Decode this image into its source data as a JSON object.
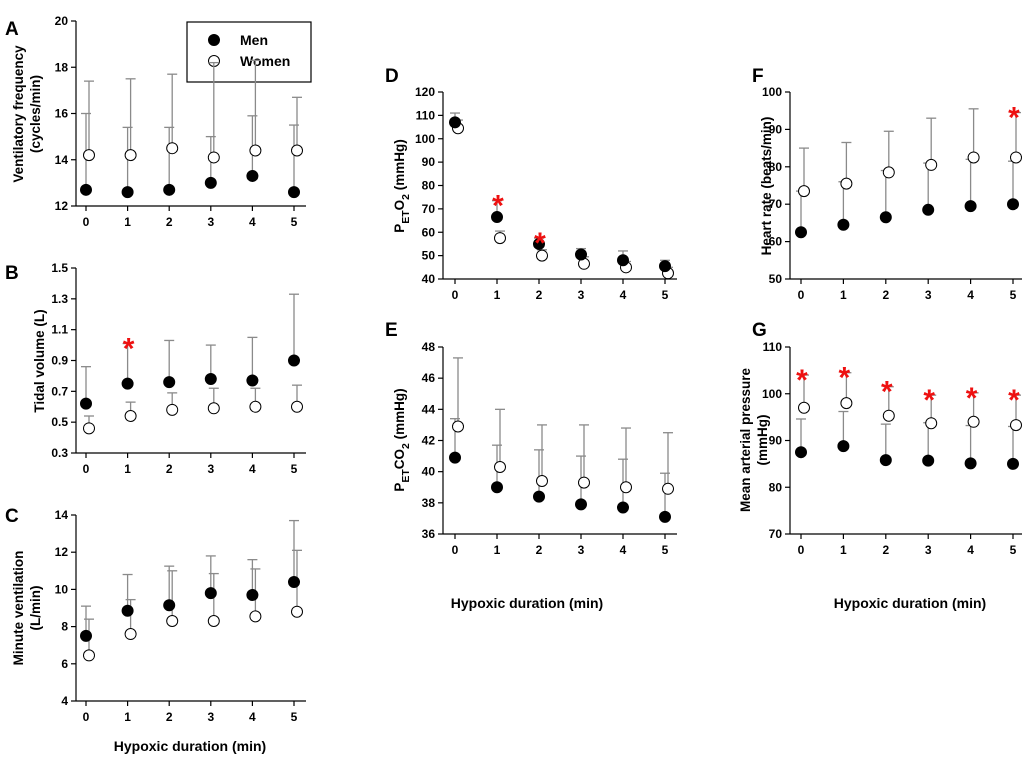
{
  "figure": {
    "xlabel": "Hypoxic duration (min)",
    "legend": {
      "men": "Men",
      "women": "Women"
    },
    "colors": {
      "star": "#ee1111",
      "errorbar": "#8a8a8a",
      "axis": "#000000",
      "men_fill": "#000000",
      "women_fill": "#ffffff"
    }
  },
  "chart_data": [
    {
      "id": "A",
      "type": "scatter",
      "letter": "A",
      "ylabel_lines": [
        "Ventilatory frequency",
        "(cycles/min)"
      ],
      "x": [
        0,
        1,
        2,
        3,
        4,
        5
      ],
      "ylim": [
        12,
        20
      ],
      "yticks": [
        12,
        14,
        16,
        18,
        20
      ],
      "ytick_labels": [
        "12",
        "14",
        "16",
        "18",
        "20"
      ],
      "series": [
        {
          "name": "Men",
          "values": [
            12.7,
            12.6,
            12.7,
            13.0,
            13.3,
            12.6
          ],
          "error_upper": [
            16.0,
            15.4,
            15.4,
            15.0,
            15.9,
            15.5
          ]
        },
        {
          "name": "Women",
          "values": [
            14.2,
            14.2,
            14.5,
            14.1,
            14.4,
            14.4
          ],
          "error_upper": [
            17.4,
            17.5,
            17.7,
            18.2,
            18.3,
            16.7
          ]
        }
      ],
      "significant": []
    },
    {
      "id": "B",
      "type": "scatter",
      "letter": "B",
      "ylabel_lines": [
        "Tidal volume (L)"
      ],
      "x": [
        0,
        1,
        2,
        3,
        4,
        5
      ],
      "ylim": [
        0.3,
        1.5
      ],
      "yticks": [
        0.3,
        0.5,
        0.7,
        0.9,
        1.1,
        1.3,
        1.5
      ],
      "ytick_labels": [
        "0.3",
        "0.5",
        "0.7",
        "0.9",
        "1.1",
        "1.3",
        "1.5"
      ],
      "series": [
        {
          "name": "Men",
          "values": [
            0.62,
            0.75,
            0.76,
            0.78,
            0.77,
            0.9
          ],
          "error_upper": [
            0.86,
            1.01,
            1.03,
            1.0,
            1.05,
            1.33
          ]
        },
        {
          "name": "Women",
          "values": [
            0.46,
            0.54,
            0.58,
            0.59,
            0.6,
            0.6
          ],
          "error_upper": [
            0.54,
            0.63,
            0.69,
            0.72,
            0.72,
            0.74
          ]
        }
      ],
      "significant": [
        1
      ]
    },
    {
      "id": "C",
      "type": "scatter",
      "letter": "C",
      "ylabel_lines": [
        "Minute ventilation",
        "(L/min)"
      ],
      "x": [
        0,
        1,
        2,
        3,
        4,
        5
      ],
      "ylim": [
        4,
        14
      ],
      "yticks": [
        4,
        6,
        8,
        10,
        12,
        14
      ],
      "ytick_labels": [
        "4",
        "6",
        "8",
        "10",
        "12",
        "14"
      ],
      "series": [
        {
          "name": "Men",
          "values": [
            7.5,
            8.85,
            9.15,
            9.8,
            9.7,
            10.4
          ],
          "error_upper": [
            9.1,
            10.8,
            11.25,
            11.8,
            11.6,
            13.7
          ]
        },
        {
          "name": "Women",
          "values": [
            6.45,
            7.6,
            8.3,
            8.3,
            8.55,
            8.8
          ],
          "error_upper": [
            8.4,
            9.45,
            11.0,
            10.85,
            11.1,
            12.1
          ]
        }
      ],
      "significant": []
    },
    {
      "id": "D",
      "type": "scatter",
      "letter": "D",
      "ylabel_main": "P",
      "ylabel_sub": "ET",
      "ylabel_mid": "O",
      "ylabel_sub2": "2",
      "ylabel_unit": " (mmHg)",
      "x": [
        0,
        1,
        2,
        3,
        4,
        5
      ],
      "ylim": [
        40,
        120
      ],
      "yticks": [
        40,
        50,
        60,
        70,
        80,
        90,
        100,
        110,
        120
      ],
      "ytick_labels": [
        "40",
        "50",
        "60",
        "70",
        "80",
        "90",
        "100",
        "110",
        "120"
      ],
      "series": [
        {
          "name": "Men",
          "values": [
            107,
            66.5,
            55,
            50.5,
            48,
            45.5
          ],
          "error_upper": [
            111,
            73.5,
            57.5,
            53,
            52,
            48
          ]
        },
        {
          "name": "Women",
          "values": [
            104.5,
            57.5,
            50,
            46.5,
            45,
            42.5
          ],
          "error_upper": [
            108,
            60.5,
            52.5,
            49.5,
            47.5,
            45
          ]
        }
      ],
      "significant": [
        1,
        2
      ]
    },
    {
      "id": "E",
      "type": "scatter",
      "letter": "E",
      "ylabel_main": "P",
      "ylabel_sub": "ET",
      "ylabel_mid": "CO",
      "ylabel_sub2": "2",
      "ylabel_unit": " (mmHg)",
      "x": [
        0,
        1,
        2,
        3,
        4,
        5
      ],
      "ylim": [
        36,
        48
      ],
      "yticks": [
        36,
        38,
        40,
        42,
        44,
        46,
        48
      ],
      "ytick_labels": [
        "36",
        "38",
        "40",
        "42",
        "44",
        "46",
        "48"
      ],
      "series": [
        {
          "name": "Men",
          "values": [
            40.9,
            39.0,
            38.4,
            37.9,
            37.7,
            37.1
          ],
          "error_upper": [
            43.4,
            41.7,
            41.4,
            41.0,
            40.8,
            39.9
          ]
        },
        {
          "name": "Women",
          "values": [
            42.9,
            40.3,
            39.4,
            39.3,
            39.0,
            38.9
          ],
          "error_upper": [
            47.3,
            44.0,
            43.0,
            43.0,
            42.8,
            42.5
          ]
        }
      ],
      "significant": []
    },
    {
      "id": "F",
      "type": "scatter",
      "letter": "F",
      "ylabel_lines": [
        "Heart rate (beats/min)"
      ],
      "x": [
        0,
        1,
        2,
        3,
        4,
        5
      ],
      "ylim": [
        50,
        100
      ],
      "yticks": [
        50,
        60,
        70,
        80,
        90,
        100
      ],
      "ytick_labels": [
        "50",
        "60",
        "70",
        "80",
        "90",
        "100"
      ],
      "series": [
        {
          "name": "Men",
          "values": [
            62.5,
            64.5,
            66.5,
            68.5,
            69.5,
            70
          ],
          "error_upper": [
            73.5,
            76,
            79,
            81,
            82,
            81.5
          ]
        },
        {
          "name": "Women",
          "values": [
            73.5,
            75.5,
            78.5,
            80.5,
            82.5,
            82.5
          ],
          "error_upper": [
            85,
            86.5,
            89.5,
            93,
            95.5,
            94.5
          ]
        }
      ],
      "significant": [
        5
      ]
    },
    {
      "id": "G",
      "type": "scatter",
      "letter": "G",
      "ylabel_lines": [
        "Mean arterial pressure",
        "(mmHg)"
      ],
      "x": [
        0,
        1,
        2,
        3,
        4,
        5
      ],
      "ylim": [
        70,
        110
      ],
      "yticks": [
        70,
        80,
        90,
        100,
        110
      ],
      "ytick_labels": [
        "70",
        "80",
        "90",
        "100",
        "110"
      ],
      "series": [
        {
          "name": "Men",
          "values": [
            87.5,
            88.8,
            85.8,
            85.7,
            85.1,
            85.0
          ],
          "error_upper": [
            94.6,
            96.2,
            93.5,
            93.8,
            93.2,
            93.0
          ]
        },
        {
          "name": "Women",
          "values": [
            97.0,
            98.0,
            95.3,
            93.7,
            94.0,
            93.3
          ],
          "error_upper": [
            104,
            104.5,
            101.5,
            99.7,
            100.2,
            99.7
          ]
        }
      ],
      "significant": [
        0,
        1,
        2,
        3,
        4,
        5
      ]
    }
  ]
}
